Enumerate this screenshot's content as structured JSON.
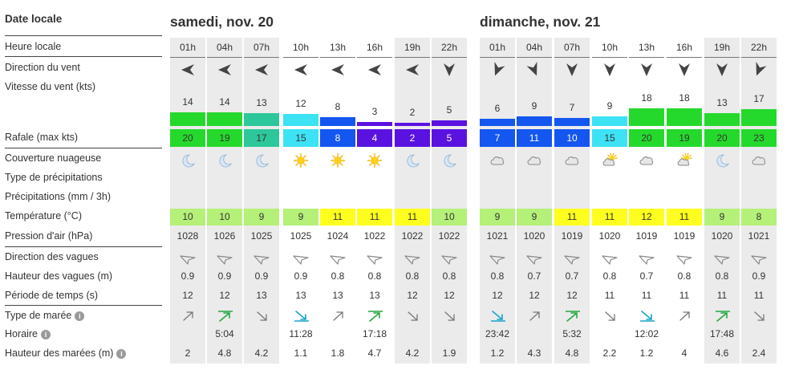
{
  "labels": {
    "date_locale": "Date locale",
    "heure_locale": "Heure locale",
    "direction_vent": "Direction du vent",
    "vitesse_vent": "Vitesse du vent  (kts)",
    "rafale": "Rafale  (max kts)",
    "couverture": "Couverture nuageuse",
    "type_precip": "Type de précipitations",
    "precip": "Précipitations  (mm / 3h)",
    "temperature": "Température  (°C)",
    "pression": "Pression d'air  (hPa)",
    "dir_vagues": "Direction des vagues",
    "hauteur_vagues": "Hauteur des vagues  (m)",
    "periode": "Période de temps  (s)",
    "type_maree": "Type de marée",
    "horaire": "Horaire",
    "hauteur_marees": "Hauteur des marées  (m)",
    "info_icon": "i"
  },
  "days": [
    {
      "title": "samedi, nov. 20"
    },
    {
      "title": "dimanche, nov. 21"
    }
  ],
  "colors": {
    "gust_scale": {
      "2-5": "#5a12e0",
      "7-11": "#1456f0",
      "15": "#3de2f5",
      "17-18": "#2cc79a",
      "19-23": "#25d92c"
    },
    "temp_scale": {
      "8-10": "#b5f078",
      "11-12": "#ffff1f"
    },
    "tide_icon": "#24a843"
  },
  "hours": [
    {
      "hour": "01h",
      "wind_dir": "w",
      "wind_speed": "14",
      "gust": "20",
      "sky": "moon",
      "temp": "10",
      "pressure": "1028",
      "wave_height": "0.9",
      "period": "12",
      "tide_type": "ne",
      "tide_time": "",
      "tide_height": "2"
    },
    {
      "hour": "04h",
      "wind_dir": "w",
      "wind_speed": "14",
      "gust": "19",
      "sky": "moon",
      "temp": "10",
      "pressure": "1026",
      "wave_height": "0.9",
      "period": "12",
      "tide_type": "high",
      "tide_time": "5:04",
      "tide_height": "4.8"
    },
    {
      "hour": "07h",
      "wind_dir": "w",
      "wind_speed": "13",
      "gust": "17",
      "sky": "moon",
      "temp": "9",
      "pressure": "1025",
      "wave_height": "0.9",
      "period": "13",
      "tide_type": "se",
      "tide_time": "",
      "tide_height": "4.2"
    },
    {
      "hour": "10h",
      "wind_dir": "w",
      "wind_speed": "12",
      "gust": "15",
      "sky": "sun",
      "temp": "9",
      "pressure": "1025",
      "wave_height": "0.9",
      "period": "13",
      "tide_type": "low",
      "tide_time": "11:28",
      "tide_height": "1.1"
    },
    {
      "hour": "13h",
      "wind_dir": "w",
      "wind_speed": "8",
      "gust": "8",
      "sky": "sun",
      "temp": "11",
      "pressure": "1024",
      "wave_height": "0.8",
      "period": "13",
      "tide_type": "ne",
      "tide_time": "",
      "tide_height": "1.8"
    },
    {
      "hour": "16h",
      "wind_dir": "w",
      "wind_speed": "3",
      "gust": "4",
      "sky": "sun",
      "temp": "11",
      "pressure": "1022",
      "wave_height": "0.8",
      "period": "13",
      "tide_type": "high",
      "tide_time": "17:18",
      "tide_height": "4.7"
    },
    {
      "hour": "19h",
      "wind_dir": "w",
      "wind_speed": "2",
      "gust": "2",
      "sky": "moon",
      "temp": "11",
      "pressure": "1022",
      "wave_height": "0.8",
      "period": "12",
      "tide_type": "se",
      "tide_time": "",
      "tide_height": "4.2"
    },
    {
      "hour": "22h",
      "wind_dir": "s",
      "wind_speed": "5",
      "gust": "5",
      "sky": "moon",
      "temp": "10",
      "pressure": "1022",
      "wave_height": "0.8",
      "period": "12",
      "tide_type": "se",
      "tide_time": "",
      "tide_height": "1.9"
    },
    {
      "hour": "01h",
      "wind_dir": "ssw",
      "wind_speed": "6",
      "gust": "7",
      "sky": "cloud",
      "temp": "9",
      "pressure": "1021",
      "wave_height": "0.8",
      "period": "12",
      "tide_type": "low",
      "tide_time": "23:42",
      "tide_height": "1.2"
    },
    {
      "hour": "04h",
      "wind_dir": "sse",
      "wind_speed": "9",
      "gust": "11",
      "sky": "cloud",
      "temp": "9",
      "pressure": "1020",
      "wave_height": "0.7",
      "period": "12",
      "tide_type": "ne",
      "tide_time": "",
      "tide_height": "4.3"
    },
    {
      "hour": "07h",
      "wind_dir": "s",
      "wind_speed": "7",
      "gust": "10",
      "sky": "cloud",
      "temp": "11",
      "pressure": "1019",
      "wave_height": "0.7",
      "period": "12",
      "tide_type": "high",
      "tide_time": "5:32",
      "tide_height": "4.8"
    },
    {
      "hour": "10h",
      "wind_dir": "s",
      "wind_speed": "9",
      "gust": "15",
      "sky": "suncloud",
      "temp": "11",
      "pressure": "1020",
      "wave_height": "0.8",
      "period": "11",
      "tide_type": "se",
      "tide_time": "",
      "tide_height": "2.2"
    },
    {
      "hour": "13h",
      "wind_dir": "s",
      "wind_speed": "18",
      "gust": "20",
      "sky": "cloud",
      "temp": "12",
      "pressure": "1019",
      "wave_height": "0.7",
      "period": "11",
      "tide_type": "low",
      "tide_time": "12:02",
      "tide_height": "1.2"
    },
    {
      "hour": "16h",
      "wind_dir": "s",
      "wind_speed": "18",
      "gust": "19",
      "sky": "suncloud",
      "temp": "11",
      "pressure": "1019",
      "wave_height": "0.8",
      "period": "11",
      "tide_type": "ne",
      "tide_time": "",
      "tide_height": "4"
    },
    {
      "hour": "19h",
      "wind_dir": "s",
      "wind_speed": "13",
      "gust": "20",
      "sky": "moon",
      "temp": "9",
      "pressure": "1020",
      "wave_height": "0.8",
      "period": "11",
      "tide_type": "high",
      "tide_time": "17:48",
      "tide_height": "4.6"
    },
    {
      "hour": "22h",
      "wind_dir": "ssw",
      "wind_speed": "17",
      "gust": "23",
      "sky": "cloud",
      "temp": "8",
      "pressure": "1021",
      "wave_height": "0.9",
      "period": "11",
      "tide_type": "se",
      "tide_time": "",
      "tide_height": "2.4"
    }
  ]
}
